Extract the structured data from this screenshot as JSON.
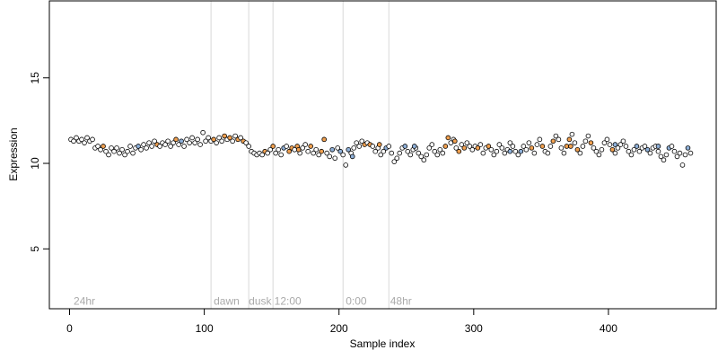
{
  "chart_data": {
    "type": "scatter",
    "title": "",
    "xlabel": "Sample index",
    "ylabel": "Expression",
    "xlim": [
      -15,
      480
    ],
    "ylim": [
      1.5,
      19.5
    ],
    "x_ticks": [
      0,
      100,
      200,
      300,
      400
    ],
    "y_ticks": [
      5,
      10,
      15
    ],
    "x_tick_labels": [
      "0",
      "100",
      "200",
      "300",
      "400"
    ],
    "y_tick_labels": [
      "5",
      "10",
      "15"
    ],
    "grid": false,
    "phase_lines": [
      105,
      133,
      151,
      203,
      237
    ],
    "annotations": [
      {
        "x": 3,
        "text": "24hr"
      },
      {
        "x": 107,
        "text": "dawn"
      },
      {
        "x": 133,
        "text": "dusk"
      },
      {
        "x": 152,
        "text": "12:00"
      },
      {
        "x": 205,
        "text": "0:00"
      },
      {
        "x": 238,
        "text": "48hr"
      }
    ],
    "annotation_y": 2.0,
    "colors": {
      "default": "#ffffff",
      "orange": "#f0a050",
      "blue": "#8fb0d8",
      "edge": "#000000",
      "phase_line": "#d8d8d8",
      "annotation_text": "#aaaaaa"
    },
    "points": [
      [
        1,
        11.4,
        0
      ],
      [
        3,
        11.3,
        0
      ],
      [
        5,
        11.5,
        0
      ],
      [
        7,
        11.3,
        0
      ],
      [
        9,
        11.4,
        0
      ],
      [
        11,
        11.2,
        0
      ],
      [
        13,
        11.5,
        0
      ],
      [
        15,
        11.3,
        0
      ],
      [
        17,
        11.4,
        0
      ],
      [
        19,
        10.9,
        0
      ],
      [
        21,
        11.0,
        0
      ],
      [
        23,
        10.8,
        0
      ],
      [
        25,
        11.0,
        1
      ],
      [
        27,
        10.7,
        0
      ],
      [
        29,
        10.5,
        0
      ],
      [
        31,
        10.9,
        0
      ],
      [
        33,
        10.7,
        0
      ],
      [
        35,
        10.9,
        0
      ],
      [
        37,
        10.6,
        0
      ],
      [
        39,
        10.8,
        0
      ],
      [
        41,
        10.5,
        0
      ],
      [
        43,
        10.7,
        0
      ],
      [
        45,
        11.0,
        0
      ],
      [
        47,
        10.6,
        0
      ],
      [
        49,
        10.9,
        0
      ],
      [
        51,
        11.0,
        2
      ],
      [
        53,
        10.8,
        0
      ],
      [
        55,
        11.1,
        0
      ],
      [
        57,
        10.9,
        0
      ],
      [
        59,
        11.2,
        0
      ],
      [
        61,
        11.0,
        0
      ],
      [
        63,
        11.3,
        0
      ],
      [
        65,
        11.1,
        1
      ],
      [
        67,
        11.0,
        0
      ],
      [
        69,
        11.2,
        0
      ],
      [
        71,
        11.1,
        0
      ],
      [
        73,
        11.3,
        0
      ],
      [
        75,
        11.0,
        0
      ],
      [
        77,
        11.2,
        0
      ],
      [
        79,
        11.4,
        1
      ],
      [
        81,
        11.1,
        0
      ],
      [
        83,
        11.3,
        2
      ],
      [
        85,
        11.0,
        0
      ],
      [
        87,
        11.4,
        0
      ],
      [
        89,
        11.2,
        0
      ],
      [
        91,
        11.5,
        0
      ],
      [
        93,
        11.2,
        0
      ],
      [
        95,
        11.4,
        0
      ],
      [
        97,
        11.1,
        0
      ],
      [
        99,
        11.8,
        0
      ],
      [
        101,
        11.3,
        0
      ],
      [
        103,
        11.5,
        0
      ],
      [
        105,
        11.3,
        0
      ],
      [
        107,
        11.4,
        1
      ],
      [
        109,
        11.2,
        0
      ],
      [
        111,
        11.5,
        0
      ],
      [
        113,
        11.3,
        0
      ],
      [
        115,
        11.6,
        1
      ],
      [
        117,
        11.4,
        0
      ],
      [
        119,
        11.5,
        1
      ],
      [
        121,
        11.3,
        0
      ],
      [
        123,
        11.6,
        0
      ],
      [
        125,
        11.4,
        1
      ],
      [
        127,
        11.5,
        0
      ],
      [
        129,
        11.3,
        1
      ],
      [
        131,
        11.2,
        0
      ],
      [
        133,
        11.0,
        0
      ],
      [
        135,
        10.7,
        0
      ],
      [
        137,
        10.6,
        0
      ],
      [
        139,
        10.5,
        0
      ],
      [
        141,
        10.6,
        0
      ],
      [
        143,
        10.5,
        0
      ],
      [
        145,
        10.7,
        1
      ],
      [
        147,
        10.6,
        0
      ],
      [
        149,
        10.8,
        0
      ],
      [
        151,
        11.0,
        1
      ],
      [
        153,
        10.6,
        0
      ],
      [
        155,
        10.8,
        0
      ],
      [
        157,
        10.5,
        0
      ],
      [
        159,
        10.9,
        2
      ],
      [
        161,
        11.0,
        0
      ],
      [
        163,
        10.7,
        1
      ],
      [
        165,
        10.9,
        1
      ],
      [
        167,
        10.8,
        0
      ],
      [
        169,
        11.0,
        1
      ],
      [
        171,
        10.6,
        0
      ],
      [
        173,
        10.9,
        0
      ],
      [
        175,
        11.1,
        0
      ],
      [
        177,
        10.7,
        0
      ],
      [
        179,
        11.0,
        1
      ],
      [
        181,
        10.6,
        0
      ],
      [
        183,
        10.8,
        0
      ],
      [
        185,
        10.5,
        0
      ],
      [
        187,
        10.7,
        1
      ],
      [
        189,
        11.4,
        1
      ],
      [
        191,
        10.6,
        0
      ],
      [
        193,
        10.4,
        0
      ],
      [
        195,
        10.8,
        2
      ],
      [
        197,
        10.3,
        0
      ],
      [
        199,
        10.9,
        0
      ],
      [
        201,
        10.7,
        2
      ],
      [
        203,
        10.5,
        0
      ],
      [
        205,
        9.9,
        0
      ],
      [
        207,
        10.8,
        2
      ],
      [
        209,
        10.6,
        0
      ],
      [
        211,
        10.9,
        0
      ],
      [
        213,
        11.2,
        0
      ],
      [
        215,
        11.0,
        0
      ],
      [
        217,
        11.3,
        0
      ],
      [
        219,
        11.1,
        1
      ],
      [
        221,
        11.2,
        0
      ],
      [
        223,
        11.1,
        1
      ],
      [
        225,
        11.0,
        0
      ],
      [
        227,
        10.7,
        0
      ],
      [
        229,
        10.9,
        0
      ],
      [
        231,
        10.5,
        0
      ],
      [
        233,
        10.7,
        0
      ],
      [
        235,
        10.9,
        2
      ],
      [
        237,
        11.0,
        0
      ],
      [
        239,
        10.6,
        0
      ],
      [
        241,
        10.1,
        0
      ],
      [
        243,
        10.3,
        0
      ],
      [
        245,
        10.6,
        0
      ],
      [
        247,
        10.9,
        0
      ],
      [
        249,
        11.0,
        2
      ],
      [
        251,
        10.7,
        0
      ],
      [
        253,
        10.5,
        0
      ],
      [
        255,
        10.8,
        0
      ],
      [
        257,
        10.9,
        0
      ],
      [
        259,
        10.6,
        0
      ],
      [
        261,
        10.4,
        0
      ],
      [
        263,
        10.2,
        0
      ],
      [
        265,
        10.5,
        0
      ],
      [
        267,
        10.9,
        0
      ],
      [
        269,
        11.1,
        0
      ],
      [
        271,
        10.7,
        0
      ],
      [
        273,
        10.5,
        0
      ],
      [
        275,
        10.8,
        0
      ],
      [
        277,
        10.6,
        0
      ],
      [
        279,
        11.0,
        1
      ],
      [
        281,
        11.5,
        1
      ],
      [
        283,
        11.2,
        0
      ],
      [
        285,
        11.4,
        0
      ],
      [
        287,
        10.9,
        0
      ],
      [
        289,
        10.7,
        1
      ],
      [
        291,
        11.1,
        0
      ],
      [
        293,
        10.9,
        1
      ],
      [
        295,
        11.2,
        0
      ],
      [
        297,
        11.0,
        0
      ],
      [
        299,
        10.8,
        0
      ],
      [
        301,
        11.0,
        0
      ],
      [
        303,
        10.9,
        1
      ],
      [
        305,
        11.1,
        0
      ],
      [
        307,
        10.6,
        0
      ],
      [
        309,
        10.9,
        0
      ],
      [
        311,
        11.0,
        1
      ],
      [
        313,
        10.8,
        0
      ],
      [
        315,
        10.5,
        0
      ],
      [
        317,
        10.7,
        0
      ],
      [
        319,
        11.1,
        0
      ],
      [
        321,
        10.9,
        0
      ],
      [
        323,
        10.6,
        0
      ],
      [
        325,
        10.8,
        0
      ],
      [
        327,
        11.2,
        0
      ],
      [
        329,
        11.0,
        0
      ],
      [
        331,
        10.7,
        0
      ],
      [
        333,
        10.5,
        0
      ],
      [
        335,
        10.7,
        2
      ],
      [
        337,
        11.0,
        0
      ],
      [
        339,
        10.8,
        0
      ],
      [
        341,
        11.2,
        0
      ],
      [
        343,
        10.9,
        1
      ],
      [
        345,
        10.6,
        0
      ],
      [
        347,
        11.1,
        0
      ],
      [
        349,
        11.4,
        0
      ],
      [
        351,
        11.0,
        1
      ],
      [
        353,
        10.7,
        0
      ],
      [
        355,
        10.6,
        0
      ],
      [
        357,
        11.0,
        0
      ],
      [
        359,
        11.3,
        1
      ],
      [
        361,
        11.6,
        0
      ],
      [
        363,
        11.4,
        0
      ],
      [
        365,
        10.9,
        0
      ],
      [
        367,
        10.6,
        0
      ],
      [
        369,
        11.0,
        1
      ],
      [
        371,
        11.4,
        1
      ],
      [
        373,
        11.7,
        0
      ],
      [
        375,
        11.2,
        0
      ],
      [
        377,
        10.8,
        1
      ],
      [
        379,
        10.6,
        0
      ],
      [
        381,
        11.0,
        0
      ],
      [
        383,
        11.3,
        0
      ],
      [
        385,
        11.6,
        0
      ],
      [
        387,
        11.2,
        1
      ],
      [
        389,
        10.9,
        0
      ],
      [
        391,
        10.7,
        0
      ],
      [
        393,
        10.5,
        0
      ],
      [
        395,
        10.8,
        0
      ],
      [
        397,
        11.2,
        0
      ],
      [
        399,
        11.4,
        0
      ],
      [
        401,
        11.1,
        0
      ],
      [
        403,
        10.8,
        1
      ],
      [
        405,
        10.6,
        0
      ],
      [
        407,
        10.9,
        0
      ],
      [
        409,
        11.1,
        0
      ],
      [
        411,
        11.3,
        0
      ],
      [
        413,
        11.0,
        0
      ],
      [
        415,
        10.7,
        0
      ],
      [
        417,
        10.5,
        0
      ],
      [
        419,
        10.8,
        0
      ],
      [
        421,
        11.0,
        2
      ],
      [
        423,
        10.7,
        0
      ],
      [
        425,
        10.9,
        0
      ],
      [
        427,
        11.0,
        0
      ],
      [
        429,
        10.8,
        2
      ],
      [
        431,
        10.6,
        0
      ],
      [
        433,
        10.9,
        0
      ],
      [
        435,
        11.0,
        0
      ],
      [
        437,
        10.7,
        0
      ],
      [
        439,
        10.4,
        0
      ],
      [
        441,
        10.2,
        0
      ],
      [
        443,
        10.5,
        0
      ],
      [
        445,
        10.9,
        2
      ],
      [
        447,
        11.0,
        0
      ],
      [
        449,
        10.7,
        0
      ],
      [
        451,
        10.4,
        0
      ],
      [
        453,
        10.6,
        0
      ],
      [
        455,
        9.9,
        0
      ],
      [
        457,
        10.5,
        0
      ],
      [
        459,
        10.9,
        2
      ],
      [
        461,
        10.6,
        0
      ],
      [
        437,
        11.0,
        2
      ],
      [
        405,
        11.1,
        2
      ],
      [
        372,
        11.0,
        1
      ],
      [
        327,
        10.7,
        2
      ],
      [
        286,
        11.3,
        1
      ],
      [
        256,
        11.0,
        2
      ],
      [
        230,
        11.1,
        1
      ],
      [
        210,
        10.4,
        2
      ],
      [
        170,
        10.8,
        1
      ]
    ]
  }
}
